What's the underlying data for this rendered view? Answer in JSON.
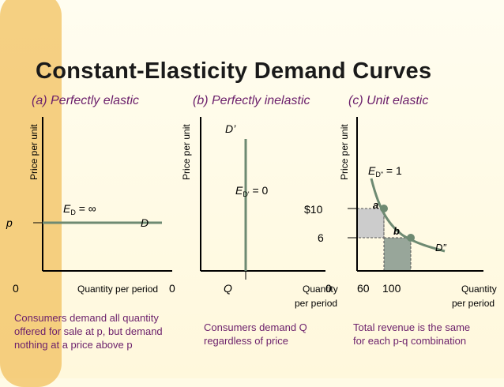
{
  "title": "Constant-Elasticity Demand Curves",
  "panels": {
    "a": {
      "heading": "(a) Perfectly elastic",
      "ylabel": "Price per unit",
      "xlabel": "Quantity per period",
      "origin": "0",
      "price_label": "p",
      "curve_label": "D",
      "elasticity_prefix": "E",
      "elasticity_sub": "D",
      "elasticity_value": " = ∞",
      "caption": [
        "Consumers demand all quantity",
        "offered for sale at p, but demand",
        "nothing at a price above p"
      ]
    },
    "b": {
      "heading": "(b) Perfectly inelastic",
      "ylabel": "Price per unit",
      "xlabel_1": "Quantity",
      "xlabel_2": "per period",
      "origin": "0",
      "quantity_label": "Q",
      "curve_label": "D’",
      "elasticity_prefix": "E",
      "elasticity_sub": "D'",
      "elasticity_value": " = 0",
      "caption": [
        "Consumers demand Q",
        "regardless of price"
      ]
    },
    "c": {
      "heading": "(c) Unit elastic",
      "ylabel": "Price per unit",
      "xlabel_1": "Quantity",
      "xlabel_2": "per period",
      "origin": "0",
      "price_high": "$10",
      "price_low": "6",
      "qty_low": "60",
      "qty_high": "100",
      "point_a": "a",
      "point_b": "b",
      "curve_label": "D”",
      "elasticity_prefix": "E",
      "elasticity_sub": "D\"",
      "elasticity_value": " = 1",
      "caption": [
        "Total revenue is the same",
        "for each p-q combination"
      ]
    }
  },
  "colors": {
    "curve": "#6e8a72",
    "axis": "#000000",
    "caption": "#6b1f6b",
    "shade_light": "#cccccc",
    "shade_dark": "#98a69a",
    "stripe": "#f2c05e"
  }
}
